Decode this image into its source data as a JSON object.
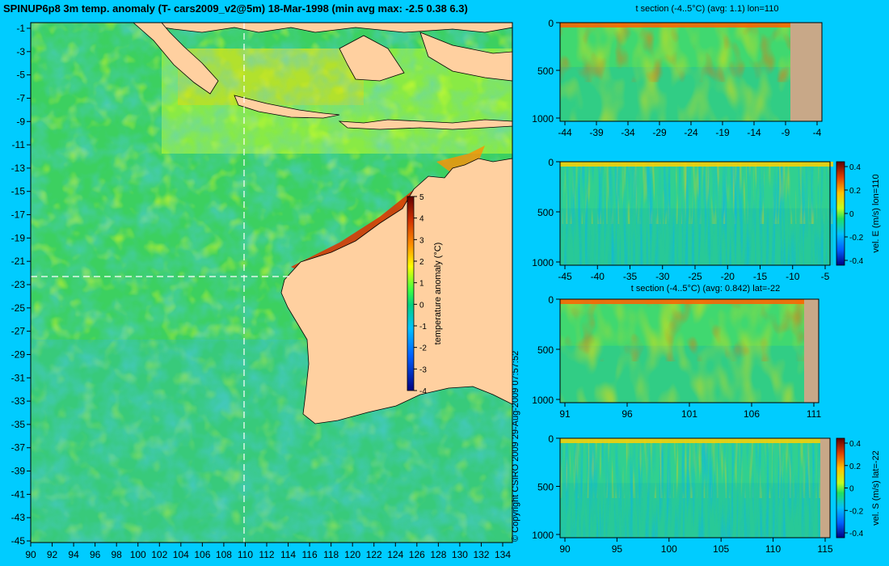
{
  "title": "SPINUP6p8 3m temp. anomaly (T- cars2009_v2@5m) 18-Mar-1998 (min avg max: -2.5 0.38 6.3)",
  "copyright": "© Copyright CSIRO 2009  29-Aug-2009 07:57:52",
  "colors": {
    "background": "#00ccff",
    "land": "#ffd0a0",
    "section_land": "#c8a888"
  },
  "map": {
    "lon_ticks": [
      "90",
      "92",
      "94",
      "96",
      "98",
      "100",
      "102",
      "104",
      "106",
      "108",
      "110",
      "112",
      "114",
      "116",
      "118",
      "120",
      "122",
      "124",
      "126",
      "128",
      "130",
      "132",
      "134"
    ],
    "lat_ticks": [
      "-1",
      "-3",
      "-5",
      "-7",
      "-9",
      "-11",
      "-13",
      "-15",
      "-17",
      "-19",
      "-21",
      "-23",
      "-25",
      "-27",
      "-29",
      "-31",
      "-33",
      "-35",
      "-37",
      "-39",
      "-41",
      "-43",
      "-45"
    ],
    "colorbar": {
      "label": "temperature anomaly (°C)",
      "ticks": [
        "5",
        "4",
        "3",
        "2",
        "1",
        "0",
        "-1",
        "-2",
        "-3",
        "-4"
      ]
    }
  },
  "panels": [
    {
      "id": "t-lon",
      "title": "t section (-4..5°C) (avg: 1.1) lon=110",
      "x_ticks": [
        "-44",
        "-39",
        "-34",
        "-29",
        "-24",
        "-19",
        "-14",
        "-9",
        "-4"
      ],
      "y_ticks": [
        "0",
        "500",
        "1000"
      ],
      "colorbar": null
    },
    {
      "id": "u-lon",
      "title": "",
      "x_ticks": [
        "-45",
        "-40",
        "-35",
        "-30",
        "-25",
        "-20",
        "-15",
        "-10",
        "-5"
      ],
      "y_ticks": [
        "0",
        "500",
        "1000"
      ],
      "colorbar": {
        "label": "vel. E (m/s) lon=110",
        "ticks": [
          "0.4",
          "0.2",
          "0",
          "-0.2",
          "-0.4"
        ]
      }
    },
    {
      "id": "t-lat",
      "title": "t section (-4..5°C) (avg: 0.842) lat=-22",
      "x_ticks": [
        "91",
        "96",
        "101",
        "106",
        "111"
      ],
      "y_ticks": [
        "0",
        "500",
        "1000"
      ],
      "colorbar": null
    },
    {
      "id": "v-lat",
      "title": "",
      "x_ticks": [
        "90",
        "95",
        "100",
        "105",
        "110",
        "115"
      ],
      "y_ticks": [
        "0",
        "500",
        "1000"
      ],
      "colorbar": {
        "label": "vel. S (m/s) lat=-22",
        "ticks": [
          "0.4",
          "0.2",
          "0",
          "-0.2",
          "-0.4"
        ]
      }
    }
  ]
}
